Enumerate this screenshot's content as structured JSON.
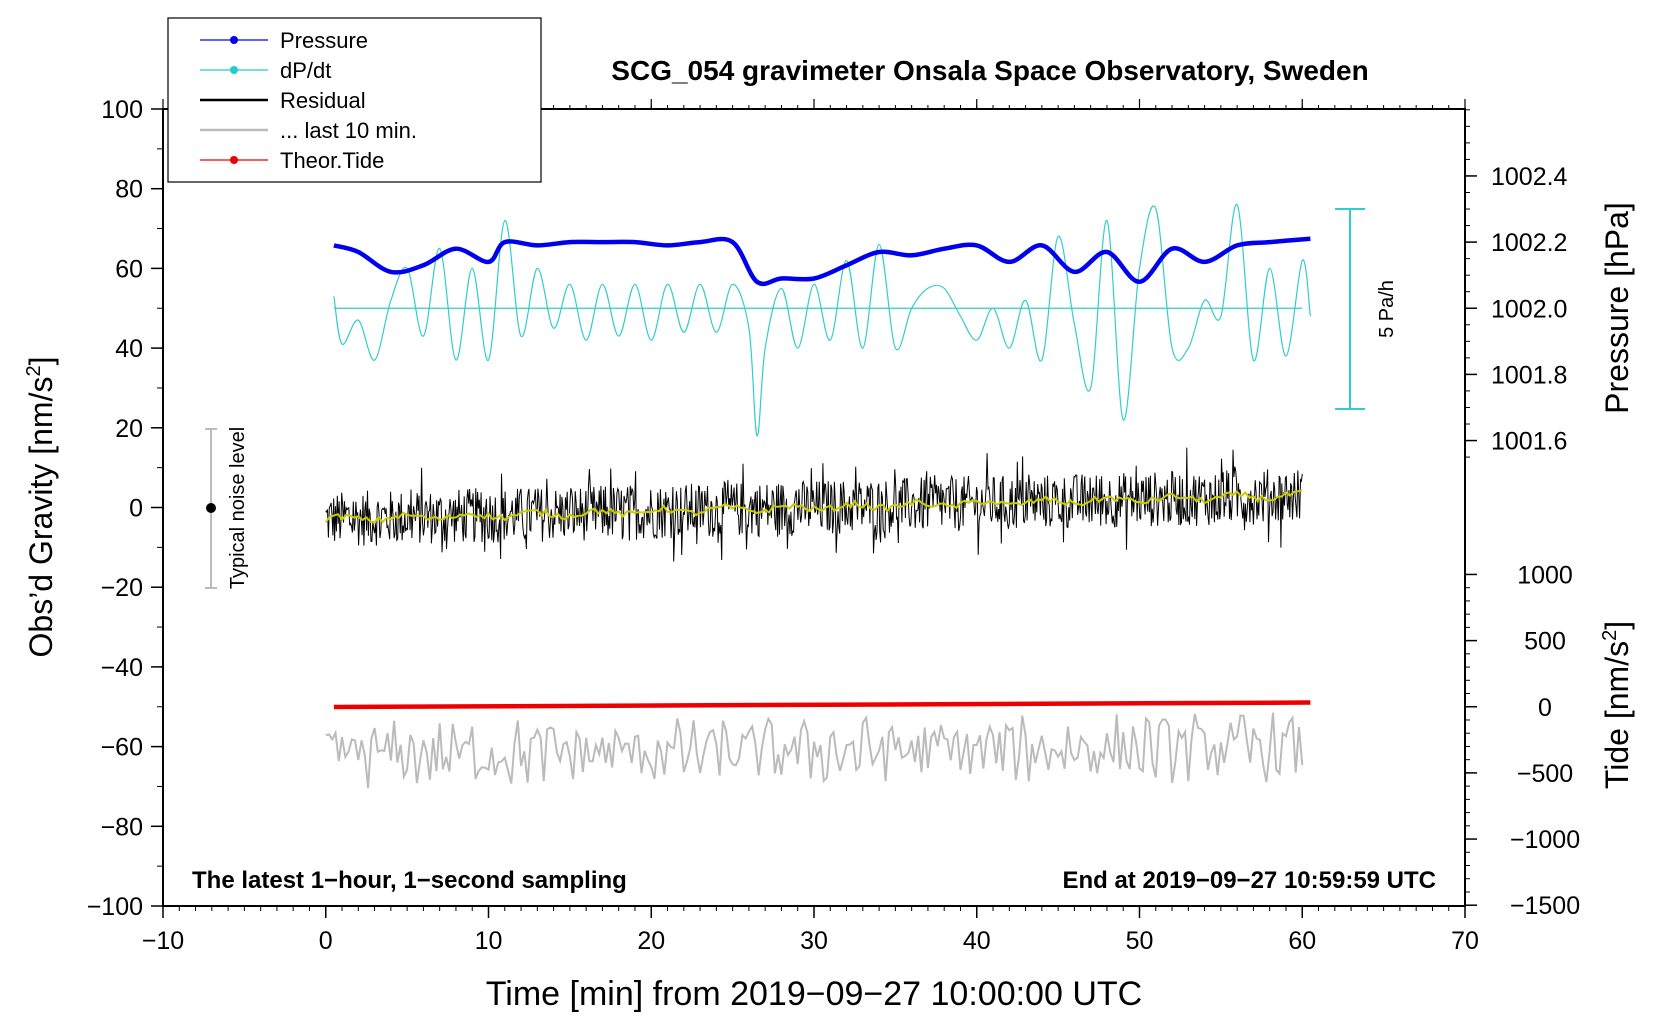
{
  "chart_data": {
    "type": "line",
    "title": "SCG_054 gravimeter Onsala Space Observatory, Sweden",
    "xlabel": "Time [min] from 2019−09−27 10:00:00 UTC",
    "ylabel_left_prefix": "Obs’d Gravity [nm/s",
    "ylabel_right_pressure": "Pressure [hPa]",
    "ylabel_right_tide_prefix": "Tide [nm/s",
    "unit_exponent": "2",
    "unit_close": "]",
    "xlim": [
      -10,
      70
    ],
    "ylim_left": [
      -100,
      100
    ],
    "x_ticks": [
      "−10",
      "0",
      "10",
      "20",
      "30",
      "40",
      "50",
      "60",
      "70"
    ],
    "y_ticks_left": [
      "100",
      "80",
      "60",
      "40",
      "20",
      "0",
      "−20",
      "−40",
      "−60",
      "−80",
      "−100"
    ],
    "pressure_ticks": [
      "1002.4",
      "1002.2",
      "1002.0",
      "1001.8",
      "1001.6"
    ],
    "tide_ticks": [
      "1000",
      "500",
      "0",
      "−500",
      "−1000",
      "−1500"
    ],
    "bottom_left_text": "The latest 1−hour, 1−second sampling",
    "bottom_right_text": "End at 2019−09−27 10:59:59 UTC",
    "noise_label": "Typical noise level",
    "rate_label": "5 Pa/h",
    "legend": [
      {
        "label": "Pressure",
        "color": "#0000ee",
        "marker": true
      },
      {
        "label": "dP/dt",
        "color": "#22cccc",
        "marker": true
      },
      {
        "label": "Residual",
        "color": "#000000",
        "marker": false
      },
      {
        "label": "... last 10 min.",
        "color": "#bbbbbb",
        "marker": false
      },
      {
        "label": "Theor.Tide",
        "color": "#ee0000",
        "marker": true
      }
    ],
    "colors": {
      "pressure": "#0000ee",
      "dpdt": "#33cccc",
      "residual": "#000000",
      "residual_mean": "#cccc00",
      "last10": "#bbbbbb",
      "tide": "#ee0000"
    },
    "series": [
      {
        "name": "Pressure (hPa)",
        "x": [
          0.5,
          2,
          4,
          6,
          8,
          10,
          11,
          13,
          15,
          17,
          19,
          21,
          23,
          25,
          26.5,
          28,
          30,
          32,
          34,
          36,
          38,
          40,
          42,
          44,
          46,
          48,
          50,
          52,
          54,
          56,
          58,
          60.5
        ],
        "values": [
          1002.19,
          1002.17,
          1002.11,
          1002.13,
          1002.18,
          1002.14,
          1002.2,
          1002.19,
          1002.2,
          1002.2,
          1002.2,
          1002.19,
          1002.2,
          1002.2,
          1002.08,
          1002.09,
          1002.09,
          1002.13,
          1002.17,
          1002.16,
          1002.18,
          1002.19,
          1002.14,
          1002.19,
          1002.11,
          1002.17,
          1002.08,
          1002.18,
          1002.14,
          1002.19,
          1002.2,
          1002.21
        ]
      },
      {
        "name": "dP/dt (nm/s² scale)",
        "x": [
          0.5,
          1,
          2,
          3,
          4,
          5,
          6,
          7,
          8,
          9,
          10,
          11,
          12,
          13,
          14,
          15,
          16,
          17,
          18,
          19,
          20,
          21,
          22,
          23,
          24,
          25,
          26,
          26.5,
          27,
          28,
          29,
          30,
          31,
          32,
          33,
          34,
          35,
          36,
          37,
          38,
          39,
          40,
          41,
          42,
          43,
          44,
          45,
          46,
          47,
          48,
          49,
          50,
          51,
          52,
          53,
          54,
          55,
          56,
          57,
          58,
          59,
          60,
          60.5
        ],
        "values": [
          53,
          41,
          47,
          37,
          52,
          60,
          43,
          65,
          37,
          60,
          37,
          72,
          43,
          60,
          45,
          56,
          42,
          56,
          43,
          56,
          42,
          56,
          44,
          56,
          44,
          56,
          45,
          18,
          40,
          55,
          40,
          56,
          42,
          62,
          40,
          66,
          40,
          50,
          55,
          55,
          48,
          42,
          50,
          40,
          52,
          37,
          68,
          46,
          30,
          72,
          22,
          60,
          75,
          40,
          40,
          52,
          48,
          76,
          37,
          60,
          38,
          62,
          48
        ]
      },
      {
        "name": "dP/dt zero line",
        "x": [
          0.5,
          60
        ],
        "values": [
          50,
          50
        ]
      },
      {
        "name": "Residual",
        "x": [
          0,
          60
        ],
        "values": [
          -3,
          3
        ],
        "envelope": [
          -12,
          14
        ]
      },
      {
        "name": "Theor.Tide (nm/s²)",
        "x": [
          0.5,
          60.5
        ],
        "values": [
          -2,
          32
        ]
      },
      {
        "name": "last 10 min.",
        "x": [
          0,
          60
        ],
        "values": [
          -62,
          -60
        ],
        "envelope": [
          -75,
          -48
        ]
      }
    ],
    "noise_bar": {
      "x": -7,
      "y_range": [
        -20,
        20
      ]
    },
    "rate_bar": {
      "x": 63,
      "y_range": [
        25,
        75
      ]
    },
    "pressure_axis": {
      "ticks": [
        1002.4,
        1002.2,
        1002.0,
        1001.8,
        1001.6
      ]
    },
    "tide_axis": {
      "ticks": [
        1000,
        500,
        0,
        -500,
        -1000,
        -1500
      ]
    }
  }
}
